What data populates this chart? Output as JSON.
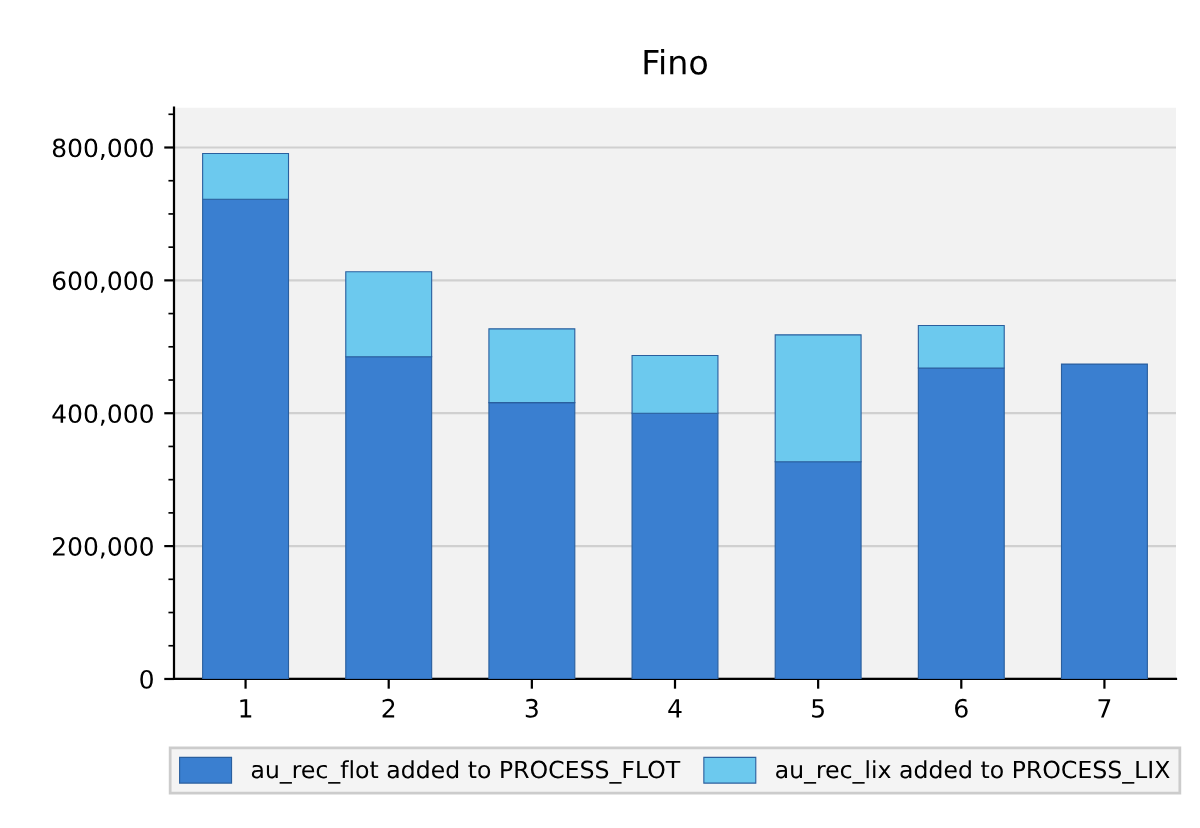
{
  "chart_data": {
    "type": "bar",
    "title": "Fino",
    "stacked": true,
    "categories": [
      "1",
      "2",
      "3",
      "4",
      "5",
      "6",
      "7"
    ],
    "series": [
      {
        "name": "au_rec_flot added to PROCESS_FLOT",
        "color": "#3a7fd0",
        "values": [
          722000,
          485000,
          416000,
          400000,
          327000,
          468000,
          474000
        ]
      },
      {
        "name": "au_rec_lix added to PROCESS_LIX",
        "color": "#6cc9ee",
        "values": [
          69000,
          128000,
          111000,
          87000,
          191000,
          64000,
          null
        ]
      }
    ],
    "ylim": [
      0,
      860000
    ],
    "yticks": [
      {
        "value": 0,
        "label": "0"
      },
      {
        "value": 200000,
        "label": "200,000"
      },
      {
        "value": 400000,
        "label": "400,000"
      },
      {
        "value": 600000,
        "label": "600,000"
      },
      {
        "value": 800000,
        "label": "800,000"
      }
    ],
    "grid": "y",
    "legend": "bottom"
  }
}
